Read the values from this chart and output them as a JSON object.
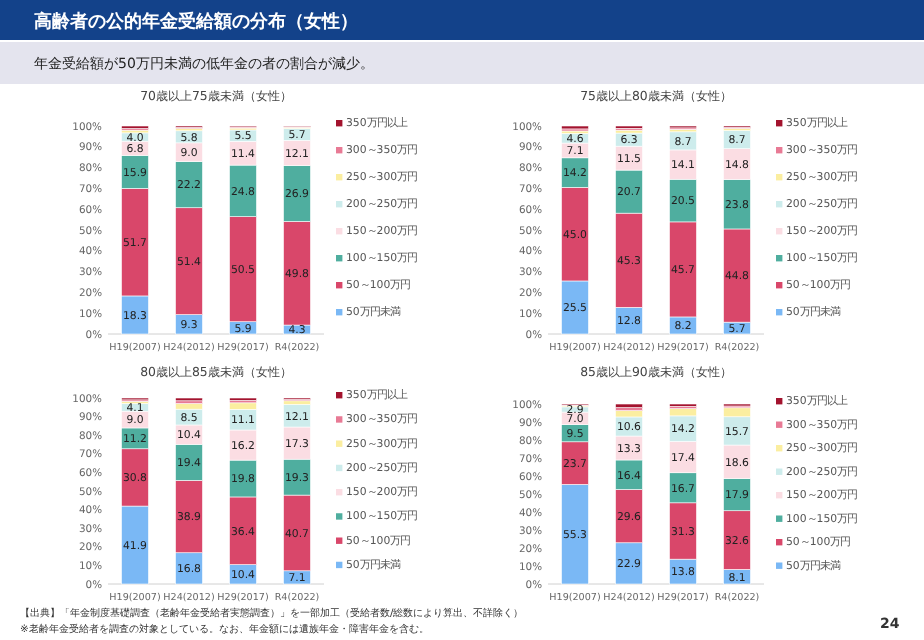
{
  "chart_data": [
    {
      "type": "bar",
      "stacked": true,
      "title": "70歳以上75歳未満（女性）",
      "annotations": [
        "高齢者の公的年金受給額の分布（女性）",
        "年金受給額が50万円未満の低年金の者の割合が減少。"
      ],
      "categories": [
        "H19(2007)",
        "H24(2012)",
        "H29(2017)",
        "R4(2022)"
      ],
      "ylim": [
        0,
        100
      ],
      "yticks": [
        {
          "value": 0,
          "label": "0%"
        },
        {
          "value": 10,
          "label": "10%"
        },
        {
          "value": 20,
          "label": "20%"
        },
        {
          "value": 30,
          "label": "30%"
        },
        {
          "value": 40,
          "label": "40%"
        },
        {
          "value": 50,
          "label": "50%"
        },
        {
          "value": 60,
          "label": "60%"
        },
        {
          "value": 70,
          "label": "70%"
        },
        {
          "value": 80,
          "label": "80%"
        },
        {
          "value": 90,
          "label": "90%"
        },
        {
          "value": 100,
          "label": "100%"
        }
      ],
      "legend": "right",
      "series": [
        {
          "name": "50万円未満",
          "color": "#7ab8f5",
          "values": [
            18.3,
            9.3,
            5.9,
            4.3
          ],
          "value_labels": [
            "18.3",
            "9.3",
            "5.9",
            "4.3"
          ]
        },
        {
          "name": "50～100万円",
          "color": "#d9476a",
          "values": [
            51.7,
            51.4,
            50.5,
            49.8
          ],
          "value_labels": [
            "51.7",
            "51.4",
            "50.5",
            "49.8"
          ]
        },
        {
          "name": "100～150万円",
          "color": "#4fae9f",
          "values": [
            15.9,
            22.2,
            24.8,
            26.9
          ],
          "value_labels": [
            "15.9",
            "22.2",
            "24.8",
            "26.9"
          ]
        },
        {
          "name": "150～200万円",
          "color": "#fbdde3",
          "values": [
            6.8,
            9.0,
            11.4,
            12.1
          ],
          "value_labels": [
            "6.8",
            "9.0",
            "11.4",
            "12.1"
          ]
        },
        {
          "name": "200～250万円",
          "color": "#cdecec",
          "values": [
            4.0,
            5.8,
            5.5,
            5.7
          ],
          "value_labels": [
            "4.0",
            "5.8",
            "5.5",
            "5.7"
          ]
        },
        {
          "name": "250～300万円",
          "color": "#fbeea0",
          "values": [
            1.3,
            1.0,
            0.9,
            0.6
          ],
          "value_labels": [
            null,
            null,
            null,
            null
          ]
        },
        {
          "name": "300～350万円",
          "color": "#e87a95",
          "values": [
            0.8,
            0.6,
            0.5,
            0.3
          ],
          "value_labels": [
            null,
            null,
            null,
            null
          ]
        },
        {
          "name": "350万円以上",
          "color": "#a3132e",
          "values": [
            1.2,
            0.7,
            0.5,
            0.3
          ],
          "value_labels": [
            null,
            null,
            null,
            null
          ]
        }
      ]
    },
    {
      "type": "bar",
      "stacked": true,
      "title": "75歳以上80歳未満（女性）",
      "categories": [
        "H19(2007)",
        "H24(2012)",
        "H29(2017)",
        "R4(2022)"
      ],
      "ylim": [
        0,
        100
      ],
      "yticks": [
        {
          "value": 0,
          "label": "0%"
        },
        {
          "value": 10,
          "label": "10%"
        },
        {
          "value": 20,
          "label": "20%"
        },
        {
          "value": 30,
          "label": "30%"
        },
        {
          "value": 40,
          "label": "40%"
        },
        {
          "value": 50,
          "label": "50%"
        },
        {
          "value": 60,
          "label": "60%"
        },
        {
          "value": 70,
          "label": "70%"
        },
        {
          "value": 80,
          "label": "80%"
        },
        {
          "value": 90,
          "label": "90%"
        },
        {
          "value": 100,
          "label": "100%"
        }
      ],
      "legend": "right",
      "series": [
        {
          "name": "50万円未満",
          "color": "#7ab8f5",
          "values": [
            25.5,
            12.8,
            8.2,
            5.7
          ],
          "value_labels": [
            "25.5",
            "12.8",
            "8.2",
            "5.7"
          ]
        },
        {
          "name": "50～100万円",
          "color": "#d9476a",
          "values": [
            45.0,
            45.3,
            45.7,
            44.8
          ],
          "value_labels": [
            "45.0",
            "45.3",
            "45.7",
            "44.8"
          ]
        },
        {
          "name": "100～150万円",
          "color": "#4fae9f",
          "values": [
            14.2,
            20.7,
            20.5,
            23.8
          ],
          "value_labels": [
            "14.2",
            "20.7",
            "20.5",
            "23.8"
          ]
        },
        {
          "name": "150～200万円",
          "color": "#fbdde3",
          "values": [
            7.1,
            11.5,
            14.1,
            14.8
          ],
          "value_labels": [
            "7.1",
            "11.5",
            "14.1",
            "14.8"
          ]
        },
        {
          "name": "200～250万円",
          "color": "#cdecec",
          "values": [
            4.6,
            6.3,
            8.7,
            8.7
          ],
          "value_labels": [
            "4.6",
            "6.3",
            "8.7",
            "8.7"
          ]
        },
        {
          "name": "250～300万円",
          "color": "#fbeea0",
          "values": [
            1.2,
            1.4,
            1.2,
            1.0
          ],
          "value_labels": [
            null,
            null,
            null,
            null
          ]
        },
        {
          "name": "300～350万円",
          "color": "#e87a95",
          "values": [
            1.0,
            0.9,
            0.7,
            0.5
          ],
          "value_labels": [
            null,
            null,
            null,
            null
          ]
        },
        {
          "name": "350万円以上",
          "color": "#a3132e",
          "values": [
            1.4,
            1.1,
            0.9,
            0.7
          ],
          "value_labels": [
            null,
            null,
            null,
            null
          ]
        }
      ]
    },
    {
      "type": "bar",
      "stacked": true,
      "title": "80歳以上85歳未満（女性）",
      "categories": [
        "H19(2007)",
        "H24(2012)",
        "H29(2017)",
        "R4(2022)"
      ],
      "ylim": [
        0,
        100
      ],
      "yticks": [
        {
          "value": 0,
          "label": "0%"
        },
        {
          "value": 10,
          "label": "10%"
        },
        {
          "value": 20,
          "label": "20%"
        },
        {
          "value": 30,
          "label": "30%"
        },
        {
          "value": 40,
          "label": "40%"
        },
        {
          "value": 50,
          "label": "50%"
        },
        {
          "value": 60,
          "label": "60%"
        },
        {
          "value": 70,
          "label": "70%"
        },
        {
          "value": 80,
          "label": "80%"
        },
        {
          "value": 90,
          "label": "90%"
        },
        {
          "value": 100,
          "label": "100%"
        }
      ],
      "legend": "right",
      "series": [
        {
          "name": "50万円未満",
          "color": "#7ab8f5",
          "values": [
            41.9,
            16.8,
            10.4,
            7.1
          ],
          "value_labels": [
            "41.9",
            "16.8",
            "10.4",
            "7.1"
          ]
        },
        {
          "name": "50～100万円",
          "color": "#d9476a",
          "values": [
            30.8,
            38.9,
            36.4,
            40.7
          ],
          "value_labels": [
            "30.8",
            "38.9",
            "36.4",
            "40.7"
          ]
        },
        {
          "name": "100～150万円",
          "color": "#4fae9f",
          "values": [
            11.2,
            19.4,
            19.8,
            19.3
          ],
          "value_labels": [
            "11.2",
            "19.4",
            "19.8",
            "19.3"
          ]
        },
        {
          "name": "150～200万円",
          "color": "#fbdde3",
          "values": [
            9.0,
            10.4,
            16.2,
            17.3
          ],
          "value_labels": [
            "9.0",
            "10.4",
            "16.2",
            "17.3"
          ]
        },
        {
          "name": "200～250万円",
          "color": "#cdecec",
          "values": [
            4.1,
            8.5,
            11.1,
            12.1
          ],
          "value_labels": [
            "4.1",
            "8.5",
            "11.1",
            "12.1"
          ]
        },
        {
          "name": "250～300万円",
          "color": "#fbeea0",
          "values": [
            1.2,
            3.0,
            3.5,
            2.0
          ],
          "value_labels": [
            null,
            null,
            null,
            null
          ]
        },
        {
          "name": "300～350万円",
          "color": "#e87a95",
          "values": [
            0.8,
            1.5,
            1.3,
            0.7
          ],
          "value_labels": [
            null,
            null,
            null,
            null
          ]
        },
        {
          "name": "350万円以上",
          "color": "#a3132e",
          "values": [
            1.0,
            1.5,
            1.3,
            0.8
          ],
          "value_labels": [
            null,
            null,
            null,
            null
          ]
        }
      ]
    },
    {
      "type": "bar",
      "stacked": true,
      "title": "85歳以上90歳未満（女性）",
      "annotations": [
        "【出典】「年金制度基礎調査（老齢年金受給者実態調査）」を一部加工（受給者数/総数により算出、不詳除く）",
        "※老齢年金受給者を調査の対象としている。なお、年金額には遺族年金・障害年金を含む。",
        "24"
      ],
      "categories": [
        "H19(2007)",
        "H24(2012)",
        "H29(2017)",
        "R4(2022)"
      ],
      "ylim": [
        0,
        100
      ],
      "yticks": [
        {
          "value": 0,
          "label": "0%"
        },
        {
          "value": 10,
          "label": "10%"
        },
        {
          "value": 20,
          "label": "20%"
        },
        {
          "value": 30,
          "label": "30%"
        },
        {
          "value": 40,
          "label": "40%"
        },
        {
          "value": 50,
          "label": "50%"
        },
        {
          "value": 60,
          "label": "60%"
        },
        {
          "value": 70,
          "label": "70%"
        },
        {
          "value": 80,
          "label": "80%"
        },
        {
          "value": 90,
          "label": "90%"
        },
        {
          "value": 100,
          "label": "100%"
        }
      ],
      "legend": "right",
      "series": [
        {
          "name": "50万円未満",
          "color": "#7ab8f5",
          "values": [
            55.3,
            22.9,
            13.8,
            8.1
          ],
          "value_labels": [
            "55.3",
            "22.9",
            "13.8",
            "8.1"
          ]
        },
        {
          "name": "50～100万円",
          "color": "#d9476a",
          "values": [
            23.7,
            29.6,
            31.3,
            32.6
          ],
          "value_labels": [
            "23.7",
            "29.6",
            "31.3",
            "32.6"
          ]
        },
        {
          "name": "100～150万円",
          "color": "#4fae9f",
          "values": [
            9.5,
            16.4,
            16.7,
            17.9
          ],
          "value_labels": [
            "9.5",
            "16.4",
            "16.7",
            "17.9"
          ]
        },
        {
          "name": "150～200万円",
          "color": "#fbdde3",
          "values": [
            7.0,
            13.3,
            17.4,
            18.6
          ],
          "value_labels": [
            "7.0",
            "13.3",
            "17.4",
            "18.6"
          ]
        },
        {
          "name": "200～250万円",
          "color": "#cdecec",
          "values": [
            2.9,
            10.6,
            14.2,
            15.7
          ],
          "value_labels": [
            "2.9",
            "10.6",
            "14.2",
            "15.7"
          ]
        },
        {
          "name": "250～300万円",
          "color": "#fbeea0",
          "values": [
            0.6,
            3.5,
            4.0,
            5.0
          ],
          "value_labels": [
            null,
            null,
            null,
            null
          ]
        },
        {
          "name": "300～350万円",
          "color": "#e87a95",
          "values": [
            0.4,
            1.7,
            1.3,
            1.0
          ],
          "value_labels": [
            null,
            null,
            null,
            null
          ]
        },
        {
          "name": "350万円以上",
          "color": "#a3132e",
          "values": [
            0.6,
            2.0,
            1.3,
            1.1
          ],
          "value_labels": [
            null,
            null,
            null,
            null
          ]
        }
      ]
    }
  ]
}
